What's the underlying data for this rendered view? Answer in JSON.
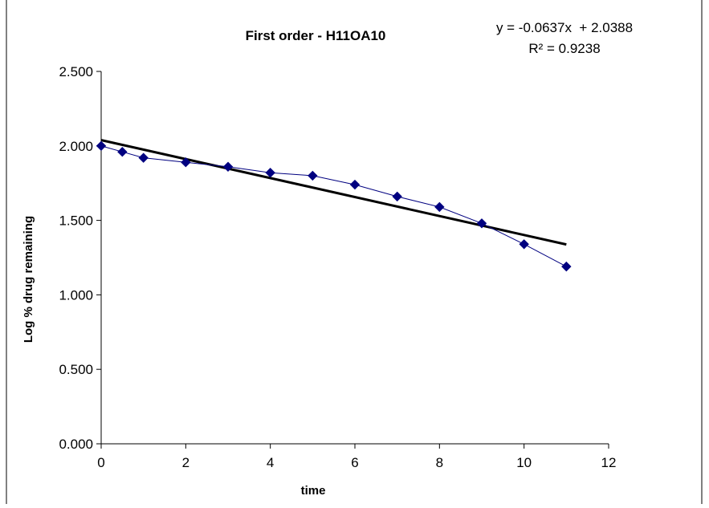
{
  "chart_data": {
    "type": "scatter",
    "title": "First order - H11OA10",
    "xlabel": "time",
    "ylabel": "Log % drug remaining",
    "xlim": [
      0,
      12
    ],
    "ylim": [
      0,
      2.5
    ],
    "x_ticks": [
      "0",
      "2",
      "4",
      "6",
      "8",
      "10",
      "12"
    ],
    "y_ticks": [
      "0.000",
      "0.500",
      "1.000",
      "1.500",
      "2.000",
      "2.500"
    ],
    "grid": false,
    "legend": "none",
    "series": [
      {
        "x": [
          0,
          0.5,
          1,
          2,
          3,
          4,
          5,
          6,
          7,
          8,
          9,
          10,
          11
        ],
        "y": [
          2.0,
          1.96,
          1.92,
          1.89,
          1.86,
          1.82,
          1.8,
          1.74,
          1.66,
          1.59,
          1.48,
          1.34,
          1.19
        ],
        "color": "#000080",
        "marker": "diamond"
      }
    ],
    "trendline": {
      "slope": -0.0637,
      "intercept": 2.0388,
      "x_range": [
        0,
        11
      ],
      "color": "#000000",
      "equation_label": "y = -0.0637x  + 2.0388",
      "r2_label": "R² = 0.9238"
    }
  }
}
